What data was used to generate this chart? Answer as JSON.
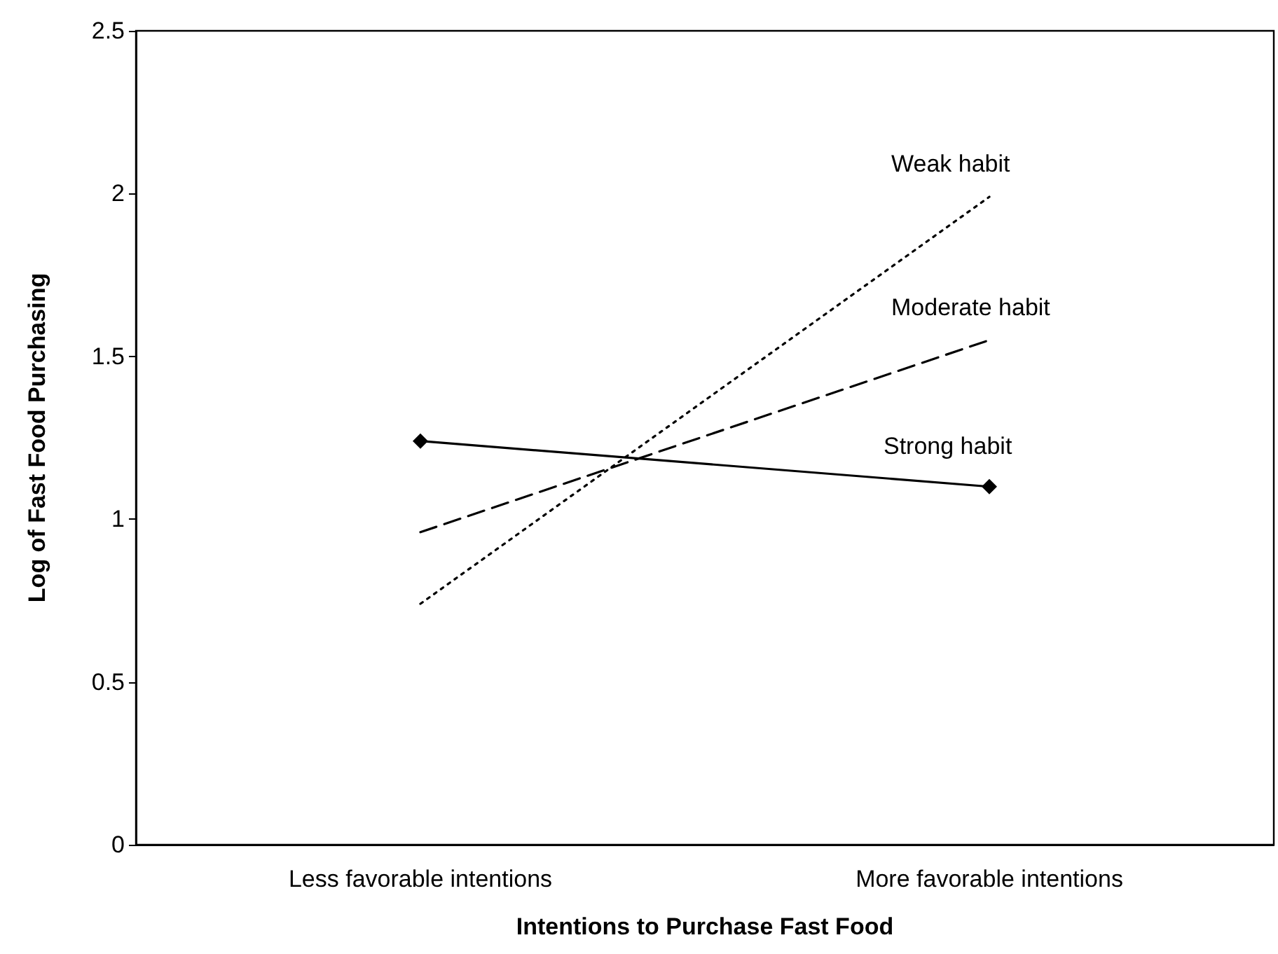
{
  "chart_data": {
    "type": "line",
    "xlabel": "Intentions to Purchase Fast Food",
    "ylabel": "Log of Fast Food Purchasing",
    "categories": [
      "Less favorable intentions",
      "More favorable intentions"
    ],
    "ylim": [
      0,
      2.5
    ],
    "yticks": [
      0,
      0.5,
      1,
      1.5,
      2,
      2.5
    ],
    "grid": false,
    "legend": false,
    "series": [
      {
        "name": "Weak habit",
        "color": "#000000",
        "values": [
          0.74,
          1.99
        ],
        "line_style": "dotted",
        "marker": "none"
      },
      {
        "name": "Moderate habit",
        "color": "#000000",
        "values": [
          0.96,
          1.55
        ],
        "line_style": "dashed",
        "marker": "none"
      },
      {
        "name": "Strong habit",
        "color": "#000000",
        "values": [
          1.24,
          1.1
        ],
        "line_style": "solid",
        "marker": "diamond"
      }
    ]
  }
}
